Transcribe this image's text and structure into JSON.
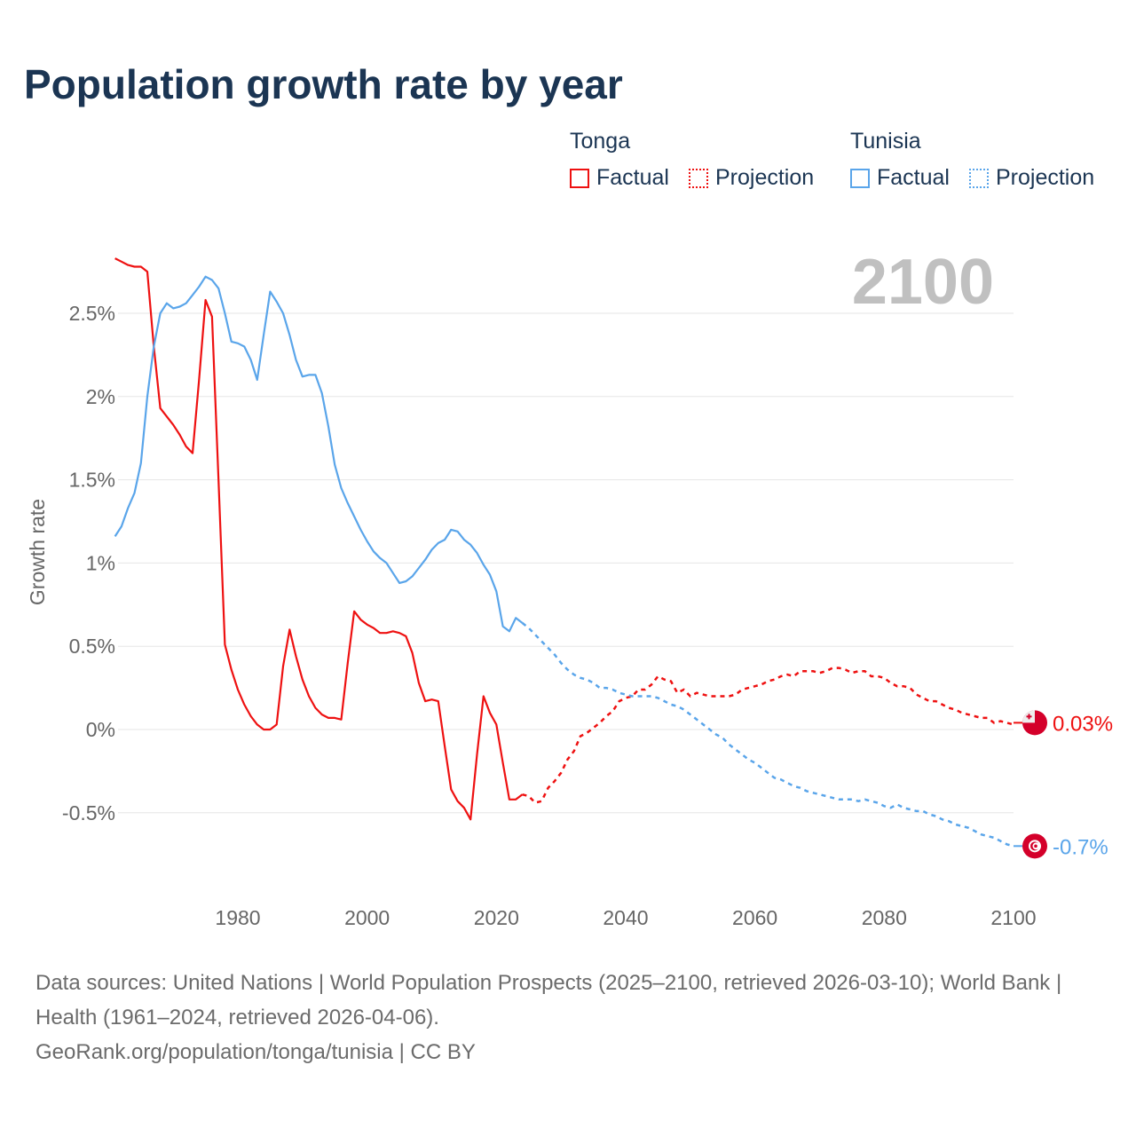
{
  "chart_data": {
    "type": "line",
    "title": "Population growth rate by year",
    "ylabel": "Growth rate",
    "xlabel": "",
    "xlim": [
      1961,
      2100
    ],
    "ylim": [
      -0.8,
      2.9
    ],
    "x_ticks": [
      1980,
      2000,
      2020,
      2040,
      2060,
      2080,
      2100
    ],
    "x_tick_labels": [
      "1980",
      "2000",
      "2020",
      "2040",
      "2060",
      "2080",
      "2100"
    ],
    "y_ticks": [
      -0.5,
      0,
      0.5,
      1,
      1.5,
      2,
      2.5
    ],
    "y_tick_labels": [
      "-0.5%",
      "0%",
      "0.5%",
      "1%",
      "1.5%",
      "2%",
      "2.5%"
    ],
    "grid": true,
    "year_display": "2100",
    "legend": {
      "placement": "top-right",
      "groups": [
        {
          "name": "Tonga",
          "color": "#ee1111",
          "factual": "Factual",
          "projection": "Projection"
        },
        {
          "name": "Tunisia",
          "color": "#5aa5ea",
          "factual": "Factual",
          "projection": "Projection"
        }
      ]
    },
    "series": [
      {
        "name": "Tonga",
        "color": "#ee1111",
        "end_label": "0.03%",
        "factual_start": 1961,
        "factual": [
          2.83,
          2.81,
          2.79,
          2.78,
          2.78,
          2.75,
          2.3,
          1.93,
          1.88,
          1.83,
          1.77,
          1.7,
          1.66,
          2.1,
          2.58,
          2.48,
          1.5,
          0.51,
          0.36,
          0.24,
          0.15,
          0.08,
          0.03,
          0.0,
          0.0,
          0.03,
          0.38,
          0.6,
          0.44,
          0.3,
          0.2,
          0.13,
          0.09,
          0.07,
          0.07,
          0.06,
          0.4,
          0.71,
          0.66,
          0.63,
          0.61,
          0.58,
          0.58,
          0.59,
          0.58,
          0.56,
          0.46,
          0.28,
          0.17,
          0.18,
          0.17,
          -0.1,
          -0.36,
          -0.43,
          -0.47,
          -0.54,
          -0.15,
          0.2,
          0.1,
          0.03,
          -0.2,
          -0.42,
          -0.42,
          -0.39
        ],
        "projection_start": 2024,
        "projection": [
          -0.39,
          -0.4,
          -0.44,
          -0.43,
          -0.35,
          -0.31,
          -0.26,
          -0.18,
          -0.13,
          -0.04,
          -0.02,
          0.01,
          0.04,
          0.08,
          0.11,
          0.17,
          0.19,
          0.2,
          0.24,
          0.24,
          0.27,
          0.32,
          0.3,
          0.29,
          0.22,
          0.24,
          0.2,
          0.22,
          0.21,
          0.2,
          0.2,
          0.2,
          0.2,
          0.21,
          0.24,
          0.25,
          0.26,
          0.27,
          0.29,
          0.3,
          0.32,
          0.33,
          0.32,
          0.35,
          0.35,
          0.35,
          0.34,
          0.35,
          0.37,
          0.37,
          0.36,
          0.34,
          0.35,
          0.35,
          0.32,
          0.32,
          0.31,
          0.28,
          0.26,
          0.26,
          0.25,
          0.21,
          0.19,
          0.17,
          0.17,
          0.15,
          0.13,
          0.12,
          0.1,
          0.09,
          0.08,
          0.07,
          0.07,
          0.04,
          0.05,
          0.04,
          0.03
        ]
      },
      {
        "name": "Tunisia",
        "color": "#5aa5ea",
        "end_label": "-0.7%",
        "factual_start": 1961,
        "factual": [
          1.16,
          1.22,
          1.33,
          1.42,
          1.6,
          2.0,
          2.3,
          2.5,
          2.56,
          2.53,
          2.54,
          2.56,
          2.61,
          2.66,
          2.72,
          2.7,
          2.65,
          2.5,
          2.33,
          2.32,
          2.3,
          2.22,
          2.1,
          2.37,
          2.63,
          2.57,
          2.5,
          2.37,
          2.22,
          2.12,
          2.13,
          2.13,
          2.02,
          1.82,
          1.59,
          1.45,
          1.36,
          1.28,
          1.2,
          1.13,
          1.07,
          1.03,
          1.0,
          0.94,
          0.88,
          0.89,
          0.92,
          0.97,
          1.02,
          1.08,
          1.12,
          1.14,
          1.2,
          1.19,
          1.14,
          1.11,
          1.06,
          0.99,
          0.93,
          0.83,
          0.62,
          0.59,
          0.67,
          0.64
        ],
        "projection_start": 2024,
        "projection": [
          0.64,
          0.61,
          0.57,
          0.53,
          0.49,
          0.45,
          0.4,
          0.36,
          0.33,
          0.31,
          0.3,
          0.28,
          0.25,
          0.25,
          0.24,
          0.22,
          0.21,
          0.2,
          0.2,
          0.2,
          0.2,
          0.19,
          0.17,
          0.15,
          0.14,
          0.12,
          0.09,
          0.06,
          0.03,
          0.0,
          -0.03,
          -0.05,
          -0.09,
          -0.12,
          -0.15,
          -0.18,
          -0.2,
          -0.23,
          -0.26,
          -0.29,
          -0.3,
          -0.32,
          -0.34,
          -0.35,
          -0.37,
          -0.38,
          -0.39,
          -0.4,
          -0.41,
          -0.42,
          -0.42,
          -0.42,
          -0.43,
          -0.42,
          -0.43,
          -0.44,
          -0.46,
          -0.47,
          -0.45,
          -0.47,
          -0.48,
          -0.49,
          -0.49,
          -0.51,
          -0.52,
          -0.54,
          -0.55,
          -0.57,
          -0.58,
          -0.59,
          -0.61,
          -0.63,
          -0.64,
          -0.65,
          -0.67,
          -0.69,
          -0.7
        ]
      }
    ]
  },
  "footer": {
    "sources": "Data sources: United Nations | World Population Prospects (2025–2100, retrieved 2026-03-10); World Bank | Health (1961–2024, retrieved 2026-04-06).",
    "credit": "GeoRank.org/population/tonga/tunisia | CC BY"
  }
}
